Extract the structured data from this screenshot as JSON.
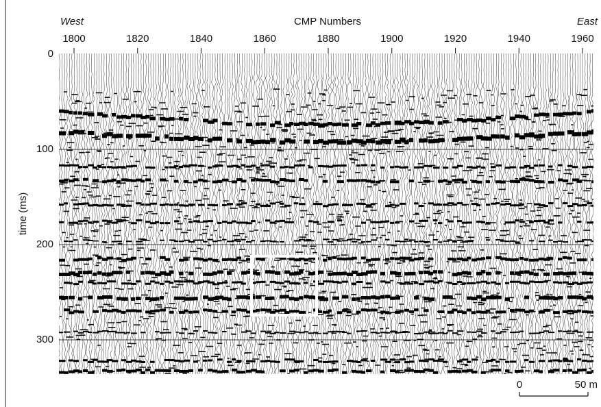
{
  "figure": {
    "left_label": "West",
    "x_axis_title": "CMP Numbers",
    "right_label": "East",
    "y_axis_title": "time (ms)",
    "x_tick_labels": [
      "1800",
      "1820",
      "1840",
      "1860",
      "1880",
      "1900",
      "1920",
      "1940",
      "1960"
    ],
    "y_tick_labels": [
      "0",
      "100",
      "200",
      "300"
    ],
    "scale_bar": {
      "start_label": "0",
      "end_label": "50 m"
    }
  }
}
